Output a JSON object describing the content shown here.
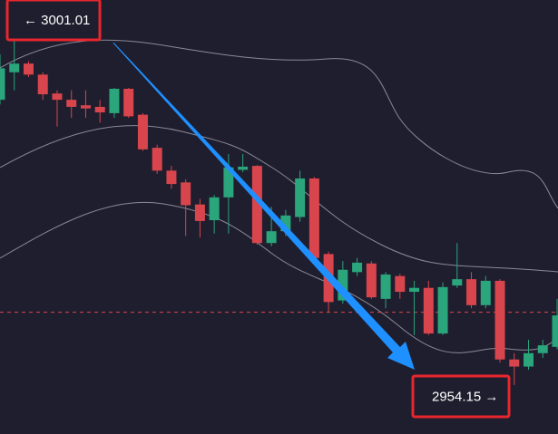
{
  "chart_data": {
    "type": "candlestick",
    "ylim": [
      2947.93,
      3003.08
    ],
    "up_color": "#2aa57c",
    "down_color": "#d9454c",
    "open": [
      2990.4,
      2993.9,
      2995.0,
      2993.6,
      2991.2,
      2990.4,
      2989.7,
      2989.5,
      2988.7,
      2991.8,
      2988.5,
      2984.3,
      2981.4,
      2979.9,
      2977.1,
      2975.1,
      2978.0,
      2981.5,
      2982.0,
      2972.2,
      2973.7,
      2975.5,
      2980.4,
      2970.8,
      2964.9,
      2968.5,
      2969.6,
      2965.1,
      2968.0,
      2966.0,
      2966.5,
      2960.7,
      2966.8,
      2967.6,
      2964.3,
      2967.4,
      2957.4,
      2956.5,
      2958.2,
      2959.0
    ],
    "high": [
      2996.2,
      3001.01,
      2995.3,
      2993.9,
      2991.6,
      2991.6,
      2991.6,
      2990.4,
      2991.9,
      2991.9,
      2988.7,
      2984.7,
      2982.0,
      2980.3,
      2977.8,
      2978.3,
      2983.5,
      2983.5,
      2982.1,
      2976.8,
      2976.4,
      2981.4,
      2980.6,
      2971.1,
      2969.9,
      2970.3,
      2969.9,
      2968.5,
      2968.3,
      2967.4,
      2967.4,
      2967.2,
      2972.2,
      2968.5,
      2968.0,
      2967.6,
      2958.2,
      2959.9,
      2959.9,
      2965.1
    ],
    "low": [
      2989.8,
      2991.6,
      2993.3,
      2990.4,
      2987.0,
      2988.1,
      2988.1,
      2987.5,
      2988.1,
      2988.1,
      2983.9,
      2981.0,
      2979.1,
      2973.1,
      2972.9,
      2973.4,
      2973.4,
      2981.2,
      2972.0,
      2971.8,
      2973.1,
      2974.9,
      2969.7,
      2963.4,
      2964.5,
      2968.0,
      2965.1,
      2963.9,
      2965.1,
      2960.5,
      2960.5,
      2960.5,
      2966.5,
      2963.9,
      2963.9,
      2957.0,
      2954.15,
      2956.1,
      2957.6,
      2958.7
    ],
    "close": [
      2994.4,
      2995.0,
      2993.6,
      2991.1,
      2990.4,
      2989.5,
      2989.3,
      2988.8,
      2991.8,
      2988.3,
      2984.1,
      2981.4,
      2979.7,
      2977.0,
      2975.0,
      2978.0,
      2981.8,
      2981.9,
      2972.2,
      2973.7,
      2975.7,
      2980.4,
      2970.3,
      2964.7,
      2968.8,
      2969.7,
      2965.3,
      2968.2,
      2966.0,
      2966.5,
      2960.7,
      2966.6,
      2967.6,
      2964.3,
      2967.4,
      2957.4,
      2956.5,
      2958.2,
      2959.2,
      2963.0
    ],
    "price_line": 2963.4,
    "price_line_color": "#d9454c",
    "annotations": [
      {
        "label": "← 3001.01",
        "value": 3001.01
      },
      {
        "label": "2954.15 →",
        "value": 2954.15
      }
    ]
  }
}
